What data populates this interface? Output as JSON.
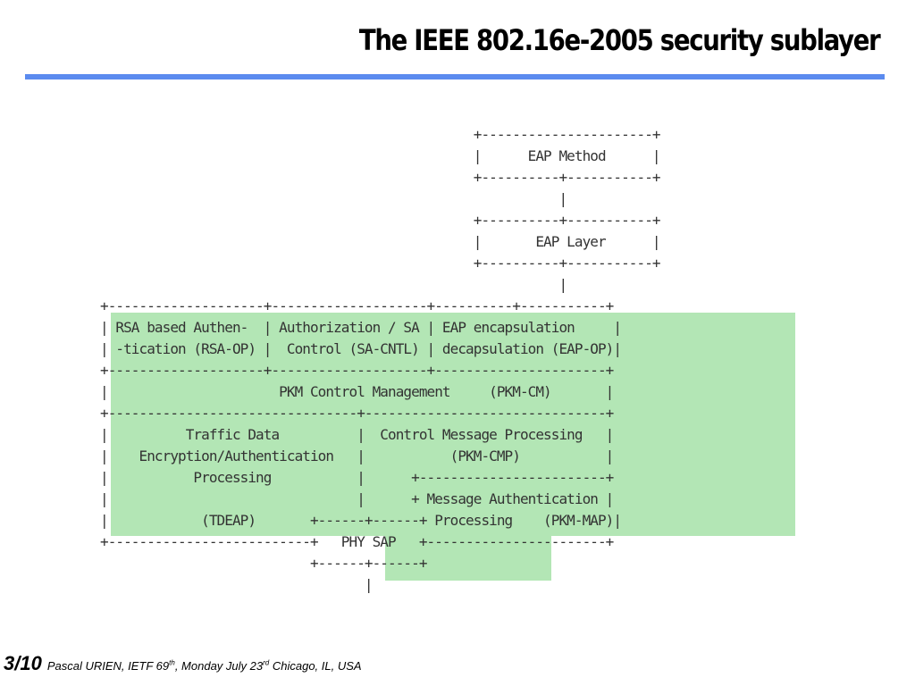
{
  "slide": {
    "title": "The IEEE 802.16e-2005 security sublayer",
    "accent_color": "#5b8bef",
    "shade_color": "#b3e6b5"
  },
  "diagram": {
    "lines": [
      "                                                +----------------------+",
      "                                                |      EAP Method      |",
      "                                                +----------+-----------+",
      "                                                           |",
      "                                                +----------+-----------+",
      "                                                |       EAP Layer      |",
      "                                                +----------+-----------+",
      "                                                           |",
      "+--------------------+--------------------+----------+-----------+",
      "| RSA based Authen-  | Authorization / SA | EAP encapsulation     |",
      "| -tication (RSA-OP) |  Control (SA-CNTL) | decapsulation (EAP-OP)|",
      "+--------------------+--------------------+----------------------+",
      "|                      PKM Control Management     (PKM-CM)       |",
      "+--------------------------------+-------------------------------+",
      "|          Traffic Data          |  Control Message Processing   |",
      "|    Encryption/Authentication   |           (PKM-CMP)           |",
      "|           Processing           |      +------------------------+",
      "|                                |      + Message Authentication |",
      "|            (TDEAP)       +------+------+ Processing    (PKM-MAP)|",
      "+--------------------------+   PHY SAP   +-----------------------+",
      "                           +------+------+",
      "                                  |"
    ]
  },
  "footer": {
    "page": "3",
    "total": "/10",
    "author": "Pascal URIEN, IETF 69",
    "sup1": "th",
    "date": ", Monday July 23",
    "sup2": "rd",
    "location": " Chicago, IL, USA"
  }
}
